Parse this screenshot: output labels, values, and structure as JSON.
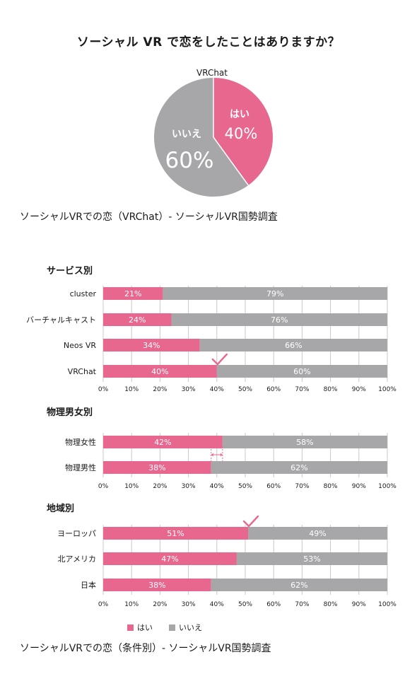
{
  "title": "ソーシャル VR で恋をしたことはありますか？",
  "colors": {
    "yes": "#E8678F",
    "no": "#A7A7A9",
    "grid": "#c8c8c8",
    "text": "#1a1a1a"
  },
  "pie": {
    "label": "VRChat",
    "yes_label": "はい",
    "yes_pct": "40%",
    "yes_value": 40,
    "no_label": "いいえ",
    "no_pct": "60%",
    "no_value": 60
  },
  "pie_caption": "ソーシャルVRでの恋（VRChat）- ソーシャルVR国勢調査",
  "bottom_caption": "ソーシャルVRでの恋（条件別）- ソーシャルVR国勢調査",
  "legend": {
    "yes": "はい",
    "no": "いいえ"
  },
  "chart_data": [
    {
      "type": "pie",
      "title": "VRChat",
      "categories": [
        "はい",
        "いいえ"
      ],
      "values": [
        40,
        60
      ]
    },
    {
      "type": "bar",
      "orientation": "horizontal",
      "stacked": true,
      "title": "サービス別",
      "categories": [
        "cluster",
        "バーチャルキャスト",
        "Neos VR",
        "VRChat"
      ],
      "series": [
        {
          "name": "はい",
          "values": [
            21,
            24,
            34,
            40
          ],
          "labels": [
            "21%",
            "24%",
            "34%",
            "40%"
          ]
        },
        {
          "name": "いいえ",
          "values": [
            79,
            76,
            66,
            60
          ],
          "labels": [
            "79%",
            "76%",
            "66%",
            "60%"
          ]
        }
      ],
      "xlim": [
        0,
        100
      ],
      "x_ticks": [
        "0%",
        "10%",
        "20%",
        "30%",
        "40%",
        "50%",
        "60%",
        "70%",
        "80%",
        "90%",
        "100%"
      ],
      "grid": true,
      "checkmark_at": 40
    },
    {
      "type": "bar",
      "orientation": "horizontal",
      "stacked": true,
      "title": "物理男女別",
      "categories": [
        "物理女性",
        "物理男性"
      ],
      "series": [
        {
          "name": "はい",
          "values": [
            42,
            38
          ],
          "labels": [
            "42%",
            "38%"
          ]
        },
        {
          "name": "いいえ",
          "values": [
            58,
            62
          ],
          "labels": [
            "58%",
            "62%"
          ]
        }
      ],
      "xlim": [
        0,
        100
      ],
      "x_ticks": [
        "0%",
        "10%",
        "20%",
        "30%",
        "40%",
        "50%",
        "60%",
        "70%",
        "80%",
        "90%",
        "100%"
      ],
      "grid": true,
      "difference_marker": [
        38,
        42
      ]
    },
    {
      "type": "bar",
      "orientation": "horizontal",
      "stacked": true,
      "title": "地域別",
      "categories": [
        "ヨーロッパ",
        "北アメリカ",
        "日本"
      ],
      "series": [
        {
          "name": "はい",
          "values": [
            51,
            47,
            38
          ],
          "labels": [
            "51%",
            "47%",
            "38%"
          ]
        },
        {
          "name": "いいえ",
          "values": [
            49,
            53,
            62
          ],
          "labels": [
            "49%",
            "53%",
            "62%"
          ]
        }
      ],
      "xlim": [
        0,
        100
      ],
      "x_ticks": [
        "0%",
        "10%",
        "20%",
        "30%",
        "40%",
        "50%",
        "60%",
        "70%",
        "80%",
        "90%",
        "100%"
      ],
      "grid": true,
      "checkmark_at": 51
    }
  ]
}
